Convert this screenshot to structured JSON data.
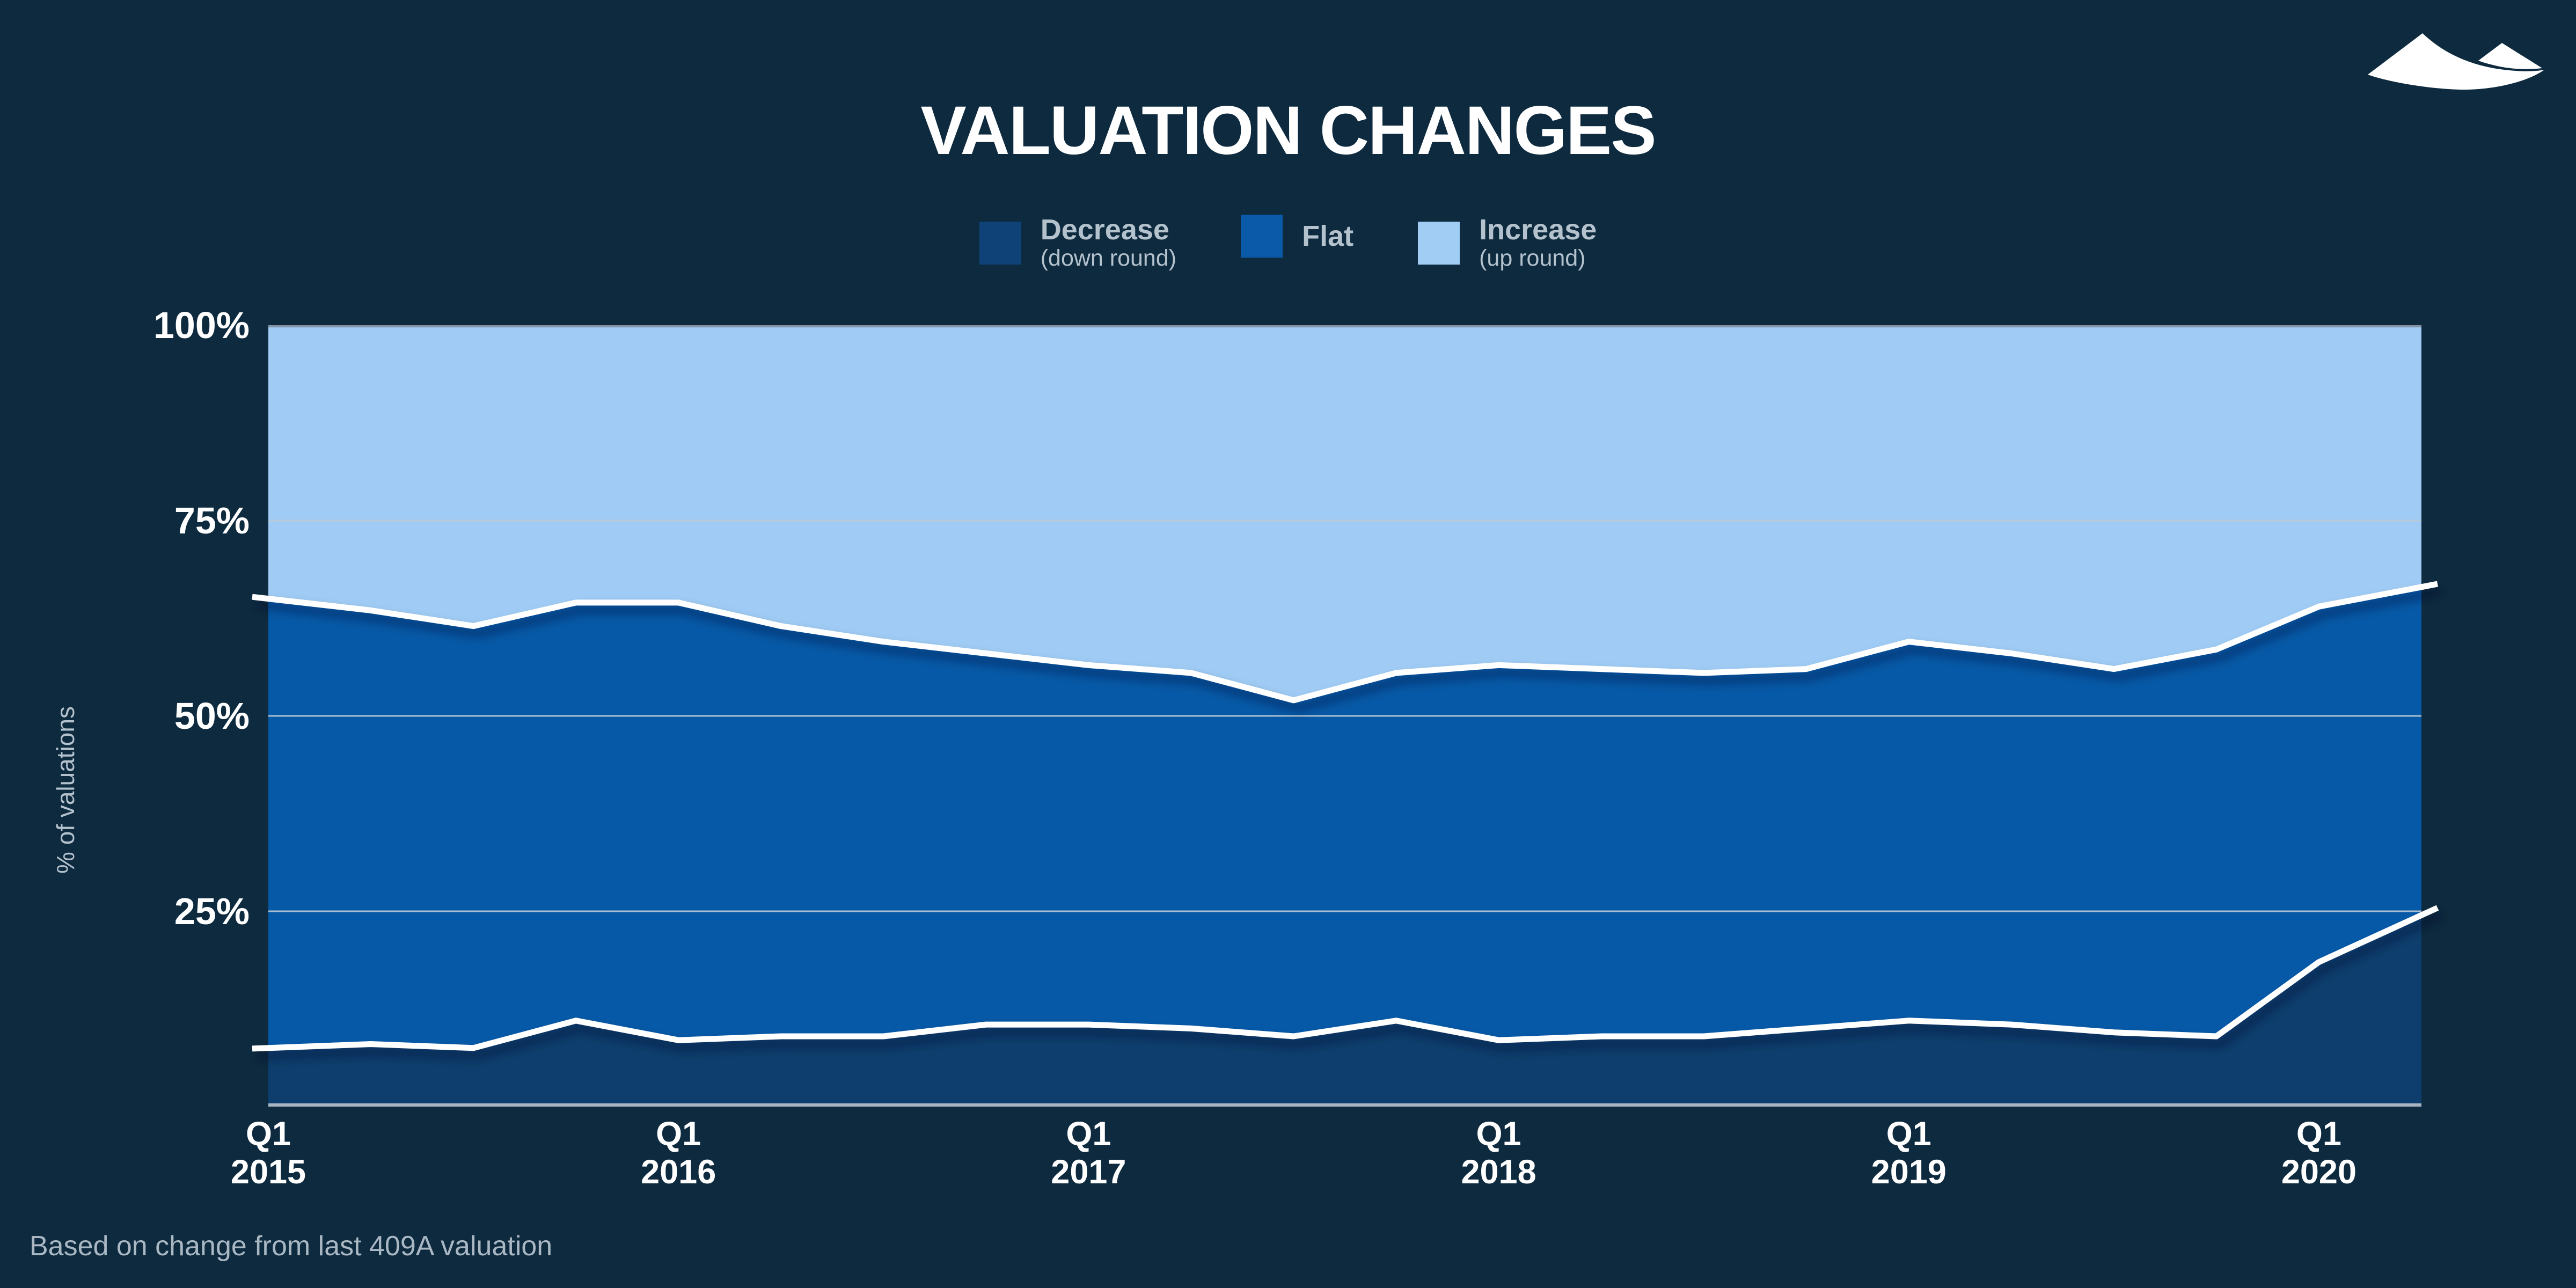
{
  "page": {
    "background": "#0d2a3f"
  },
  "header": {
    "title": "VALUATION CHANGES",
    "logo_icon": "carta-mountains-logo",
    "logo_color": "#ffffff"
  },
  "legend": {
    "items": [
      {
        "label": "Decrease",
        "sublabel": "(down round)",
        "color": "#0f4276"
      },
      {
        "label": "Flat",
        "sublabel": "",
        "color": "#0a5aa9"
      },
      {
        "label": "Increase",
        "sublabel": "(up round)",
        "color": "#a1cdf4"
      }
    ],
    "text_color": "#b4c2cd"
  },
  "chart_data": {
    "type": "area",
    "stacked": true,
    "title": "VALUATION CHANGES",
    "xlabel": "",
    "ylabel": "% of valuations",
    "ylim": [
      0,
      100
    ],
    "grid": "horizontal",
    "legend_position": "top-center",
    "categories": [
      "Q1 2015",
      "Q2 2015",
      "Q3 2015",
      "Q4 2015",
      "Q1 2016",
      "Q2 2016",
      "Q3 2016",
      "Q4 2016",
      "Q1 2017",
      "Q2 2017",
      "Q3 2017",
      "Q4 2017",
      "Q1 2018",
      "Q2 2018",
      "Q3 2018",
      "Q4 2018",
      "Q1 2019",
      "Q2 2019",
      "Q3 2019",
      "Q4 2019",
      "Q1 2020",
      "Q2 2020"
    ],
    "series": [
      {
        "name": "Decrease (down round)",
        "color": "#0d3e6d",
        "values": [
          7.5,
          8,
          7.5,
          11,
          8.5,
          9,
          9,
          10.5,
          10.5,
          10,
          9,
          11,
          8.5,
          9,
          9,
          10,
          11,
          10.5,
          9.5,
          9,
          18.5,
          24.5
        ]
      },
      {
        "name": "Flat",
        "color": "#0659a7",
        "values": [
          57.5,
          55.5,
          54,
          53.5,
          56,
          52.5,
          50.5,
          47.5,
          46,
          45.5,
          43,
          44.5,
          48,
          47,
          46.5,
          46,
          48.5,
          47.5,
          46.5,
          49.5,
          45.5,
          42
        ]
      },
      {
        "name": "Increase (up round)",
        "color": "#9fcbf4",
        "values": [
          35,
          36.5,
          38.5,
          35.5,
          35.5,
          38.5,
          40.5,
          42,
          43.5,
          44.5,
          48,
          44.5,
          43.5,
          44,
          44.5,
          44,
          40.5,
          42,
          44,
          41.5,
          36,
          33.5
        ]
      }
    ],
    "y_ticks": [
      {
        "label": "100%",
        "value": 100
      },
      {
        "label": "75%",
        "value": 75
      },
      {
        "label": "50%",
        "value": 50
      },
      {
        "label": "25%",
        "value": 25
      }
    ],
    "x_ticks": [
      {
        "line1": "Q1",
        "line2": "2015",
        "index": 0
      },
      {
        "line1": "Q1",
        "line2": "2016",
        "index": 4
      },
      {
        "line1": "Q1",
        "line2": "2017",
        "index": 8
      },
      {
        "line1": "Q1",
        "line2": "2018",
        "index": 12
      },
      {
        "line1": "Q1",
        "line2": "2019",
        "index": 16
      },
      {
        "line1": "Q1",
        "line2": "2020",
        "index": 20
      }
    ],
    "style": {
      "boundary_line_color": "#ffffff",
      "boundary_line_width": 11,
      "gridline_color": "#bccad6",
      "top_border_color": "#8494a4",
      "baseline_color": "#a8b6c3",
      "shadow_color": "#031626"
    }
  },
  "footer": {
    "caption": "Based on change from last 409A valuation"
  }
}
